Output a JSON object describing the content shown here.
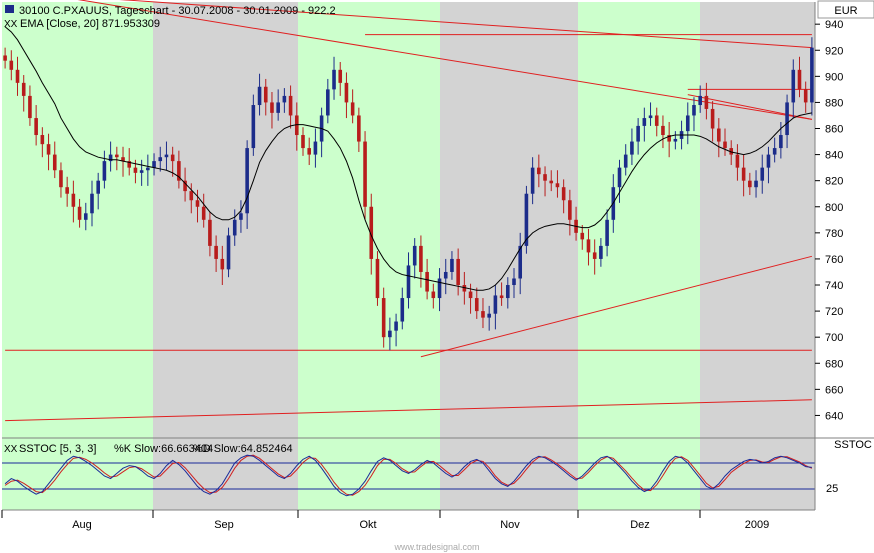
{
  "header": {
    "series_title": "30100 C.PXAUUS, Tageschart - 30.07.2008 - 30.01.2009 - 922.2",
    "ema_label": "EMA [Close, 20] 871.953309",
    "currency": "EUR"
  },
  "stoch_panel": {
    "title_prefix": "SSTOC [5, 3, 3]",
    "k_label": "%K Slow:66.663404",
    "d_label": "%D Slow:64.852464",
    "axis_label": "SSTOC",
    "axis_tick": "25"
  },
  "watermark": "www.tradesignal.com",
  "colors": {
    "band_green": "#ccffcc",
    "band_gray": "#d3d3d3",
    "candle_up": "#1c2c8a",
    "candle_down": "#b81c1c",
    "ema": "#000000",
    "trendline": "#e02020",
    "k_line": "#1a2a9a",
    "d_line": "#d02020"
  },
  "chart_data": [
    {
      "type": "candlestick",
      "title": "30100 C.PXAUUS, Tageschart - 30.07.2008 - 30.01.2009 - 922.2",
      "ylabel": "EUR",
      "ylim": [
        625,
        957
      ],
      "yticks": [
        640,
        660,
        680,
        700,
        720,
        740,
        760,
        780,
        800,
        820,
        840,
        860,
        880,
        900,
        920,
        940
      ],
      "xticks": [
        "Aug",
        "Sep",
        "Okt",
        "Nov",
        "Dez",
        "2009"
      ],
      "month_bands": [
        {
          "month": "Aug",
          "shade": "green"
        },
        {
          "month": "Sep",
          "shade": "gray"
        },
        {
          "month": "Okt",
          "shade": "green"
        },
        {
          "month": "Nov",
          "shade": "gray"
        },
        {
          "month": "Dez",
          "shade": "green"
        },
        {
          "month": "2009",
          "shade": "gray"
        }
      ],
      "close": [
        912,
        905,
        895,
        885,
        868,
        855,
        848,
        840,
        828,
        815,
        810,
        800,
        790,
        795,
        810,
        820,
        835,
        840,
        838,
        835,
        830,
        826,
        828,
        830,
        835,
        838,
        840,
        835,
        820,
        812,
        805,
        800,
        790,
        770,
        760,
        752,
        778,
        790,
        795,
        845,
        878,
        892,
        880,
        872,
        880,
        885,
        870,
        855,
        845,
        840,
        850,
        870,
        890,
        905,
        895,
        880,
        870,
        850,
        800,
        760,
        730,
        700,
        705,
        712,
        730,
        755,
        770,
        750,
        735,
        730,
        745,
        750,
        760,
        740,
        735,
        730,
        720,
        715,
        718,
        732,
        730,
        740,
        745,
        770,
        810,
        830,
        825,
        820,
        818,
        815,
        805,
        790,
        780,
        775,
        765,
        760,
        770,
        790,
        815,
        830,
        840,
        850,
        862,
        868,
        870,
        862,
        855,
        850,
        852,
        858,
        870,
        878,
        885,
        875,
        860,
        850,
        845,
        840,
        830,
        820,
        815,
        820,
        830,
        840,
        845,
        855,
        880,
        905,
        890,
        880,
        922
      ],
      "ema20": [
        938,
        934,
        928,
        920,
        912,
        904,
        895,
        887,
        879,
        868,
        860,
        852,
        846,
        842,
        840,
        838,
        837,
        836,
        836,
        835,
        834,
        833,
        832,
        831,
        830,
        829,
        828,
        826,
        823,
        818,
        813,
        808,
        802,
        796,
        792,
        790,
        790,
        792,
        797,
        807,
        820,
        834,
        843,
        850,
        856,
        860,
        862,
        863,
        863,
        862,
        861,
        860,
        858,
        852,
        845,
        835,
        822,
        805,
        790,
        778,
        768,
        760,
        754,
        750,
        748,
        747,
        746,
        745,
        744,
        743,
        742,
        741,
        740,
        739,
        738,
        737,
        736,
        736,
        737,
        740,
        745,
        752,
        760,
        768,
        775,
        780,
        783,
        785,
        786,
        787,
        787,
        786,
        785,
        784,
        784,
        786,
        790,
        796,
        803,
        811,
        819,
        827,
        834,
        840,
        845,
        849,
        852,
        854,
        855,
        855,
        855,
        855,
        854,
        852,
        849,
        846,
        844,
        842,
        841,
        840,
        841,
        843,
        846,
        850,
        855,
        860,
        864,
        868,
        870,
        871,
        872
      ],
      "ema_label": "EMA [Close, 20] 871.953309",
      "trendlines": [
        {
          "from": [
            0,
            965
          ],
          "to": [
            130,
            922
          ]
        },
        {
          "from": [
            0,
            968
          ],
          "to": [
            130,
            867
          ]
        },
        {
          "from": [
            58,
            932
          ],
          "to": [
            130,
            932
          ]
        },
        {
          "from": [
            110,
            890
          ],
          "to": [
            130,
            890
          ]
        },
        {
          "from": [
            110,
            886
          ],
          "to": [
            130,
            867
          ]
        },
        {
          "from": [
            67,
            685
          ],
          "to": [
            130,
            762
          ]
        },
        {
          "from": [
            0,
            690
          ],
          "to": [
            130,
            690
          ]
        },
        {
          "from": [
            0,
            636
          ],
          "to": [
            130,
            652
          ]
        }
      ]
    },
    {
      "type": "line",
      "title": "SSTOC [5, 3, 3]",
      "ylabel": "SSTOC",
      "ylim": [
        0,
        100
      ],
      "yticks": [
        25
      ],
      "reference_lines": [
        25,
        75
      ],
      "series": [
        {
          "name": "%K Slow",
          "values": [
            35,
            45,
            40,
            30,
            22,
            15,
            20,
            35,
            50,
            65,
            80,
            88,
            85,
            78,
            70,
            60,
            50,
            45,
            55,
            65,
            70,
            68,
            60,
            50,
            45,
            55,
            70,
            80,
            72,
            60,
            45,
            30,
            20,
            15,
            22,
            35,
            55,
            75,
            85,
            90,
            88,
            80,
            70,
            60,
            50,
            45,
            55,
            70,
            82,
            88,
            80,
            65,
            48,
            30,
            18,
            12,
            15,
            25,
            40,
            60,
            78,
            85,
            80,
            70,
            60,
            55,
            62,
            72,
            80,
            75,
            65,
            55,
            48,
            55,
            68,
            78,
            82,
            75,
            60,
            45,
            35,
            30,
            40,
            55,
            70,
            82,
            88,
            85,
            78,
            70,
            60,
            50,
            42,
            50,
            62,
            75,
            85,
            88,
            80,
            68,
            55,
            40,
            28,
            20,
            25,
            40,
            60,
            78,
            88,
            85,
            75,
            60,
            45,
            30,
            25,
            35,
            50,
            62,
            70,
            78,
            82,
            80,
            75,
            78,
            85,
            88,
            85,
            80,
            75,
            68,
            66.66
          ]
        },
        {
          "name": "%D Slow",
          "values": [
            32,
            40,
            42,
            36,
            28,
            20,
            18,
            28,
            42,
            58,
            72,
            84,
            86,
            82,
            75,
            66,
            56,
            48,
            50,
            58,
            66,
            68,
            64,
            56,
            48,
            50,
            62,
            74,
            76,
            66,
            52,
            38,
            26,
            18,
            19,
            28,
            45,
            65,
            80,
            88,
            90,
            84,
            74,
            64,
            54,
            47,
            50,
            62,
            76,
            85,
            84,
            72,
            56,
            38,
            24,
            15,
            13,
            20,
            32,
            50,
            70,
            82,
            82,
            74,
            64,
            57,
            58,
            68,
            77,
            78,
            70,
            60,
            51,
            51,
            62,
            74,
            80,
            78,
            66,
            50,
            38,
            32,
            36,
            48,
            63,
            77,
            86,
            87,
            81,
            73,
            64,
            54,
            45,
            46,
            57,
            70,
            81,
            87,
            84,
            72,
            60,
            46,
            33,
            23,
            22,
            33,
            51,
            70,
            84,
            87,
            80,
            66,
            51,
            36,
            27,
            30,
            43,
            57,
            66,
            74,
            80,
            81,
            77,
            76,
            82,
            87,
            87,
            82,
            77,
            70,
            64.85
          ]
        }
      ],
      "labels": {
        "k": "%K Slow:66.663404",
        "d": "%D Slow:64.852464"
      }
    }
  ]
}
